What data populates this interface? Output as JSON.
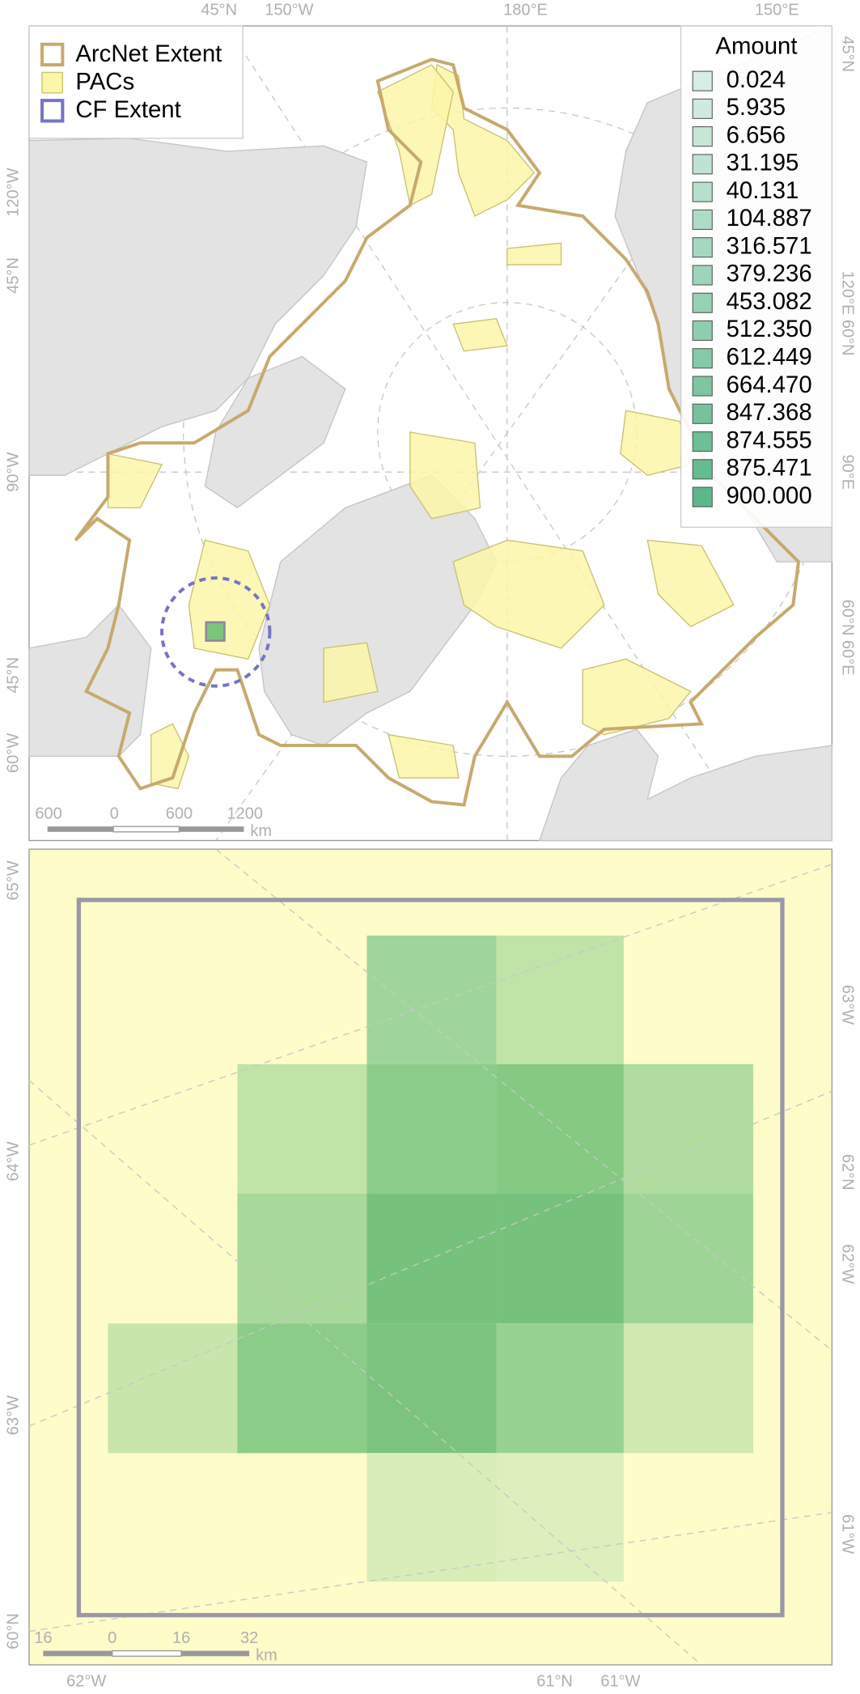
{
  "map_overview": {
    "legend": {
      "items": [
        "ArcNet Extent",
        "PACs",
        "CF Extent"
      ]
    },
    "amount_legend": {
      "title": "Amount",
      "values": [
        "0.024",
        "5.935",
        "6.656",
        "31.195",
        "40.131",
        "104.887",
        "316.571",
        "379.236",
        "453.082",
        "512.350",
        "612.449",
        "664.470",
        "847.368",
        "874.555",
        "875.471",
        "900.000"
      ]
    },
    "graticule_labels": {
      "top": [
        "45°N",
        "150°W",
        "180°E",
        "150°E"
      ],
      "left": [
        "120°W",
        "45°N",
        "90°W",
        "45°N",
        "60°W"
      ],
      "right": [
        "45°N",
        "120°E 60°N",
        "90°E",
        "60°N 60°E"
      ]
    },
    "scale_bar": {
      "labels": [
        "600",
        "0",
        "600",
        "1200"
      ],
      "unit": "km"
    }
  },
  "map_detail": {
    "graticule_labels": {
      "left": [
        "65°W",
        "64°W",
        "63°W",
        "60°N"
      ],
      "right": [
        "63°W",
        "62°N",
        "62°W",
        "61°W"
      ],
      "bottom": [
        "62°W",
        "61°N",
        "61°W"
      ]
    },
    "scale_bar": {
      "labels": [
        "16",
        "0",
        "16",
        "32"
      ],
      "unit": "km"
    }
  }
}
